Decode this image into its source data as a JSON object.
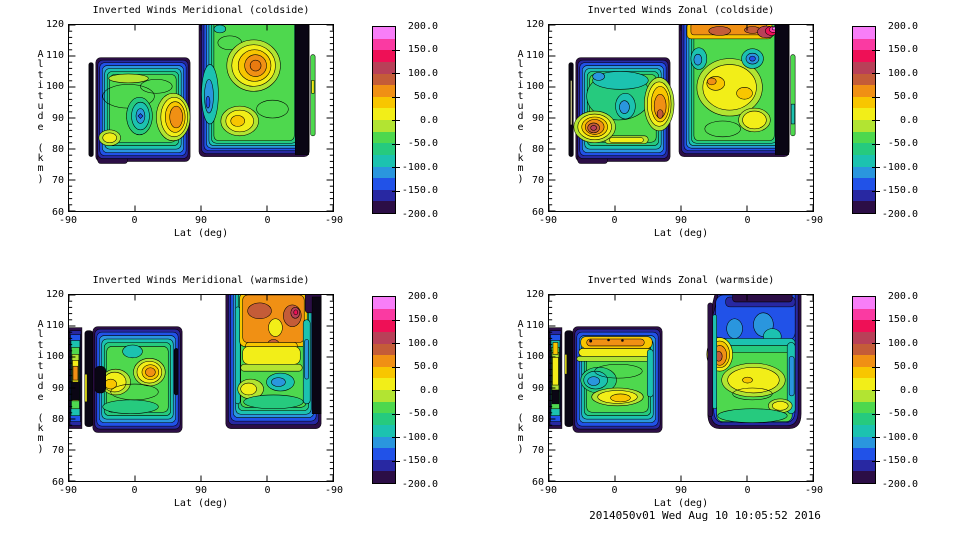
{
  "footer": {
    "text": "2014050v01 Wed Aug 10 10:05:52 2016"
  },
  "axes": {
    "x_label": "Lat (deg)",
    "y_label": "Altitude (km)",
    "x_ticks": [
      "-90",
      "0",
      "90",
      "0",
      "-90"
    ],
    "y_ticks": [
      "120",
      "110",
      "100",
      "90",
      "80",
      "70",
      "60"
    ]
  },
  "colorbar": {
    "labels": [
      "200.0",
      "150.0",
      "100.0",
      "50.0",
      "0.0",
      "-50.0",
      "-100.0",
      "-150.0",
      "-200.0"
    ],
    "min": -200,
    "max": 200,
    "band_step": 25,
    "colors_top_to_bottom": [
      "#f87ef8",
      "#fa3aa2",
      "#ee1056",
      "#b84058",
      "#c45c38",
      "#f09014",
      "#f8c600",
      "#f2ee18",
      "#b2e432",
      "#4ed84e",
      "#26ca7e",
      "#1cc2b0",
      "#2a96de",
      "#2152e8",
      "#2828a2",
      "#2c0e46"
    ]
  },
  "panels": [
    {
      "id": "meridional-coldside",
      "title": "Inverted Winds Meridional (coldside)"
    },
    {
      "id": "zonal-coldside",
      "title": "Inverted Winds Zonal (coldside)"
    },
    {
      "id": "meridional-warmside",
      "title": "Inverted Winds Meridional (warmside)"
    },
    {
      "id": "zonal-warmside",
      "title": "Inverted Winds Zonal (warmside)"
    }
  ],
  "chart_data": [
    {
      "panel": "top-left",
      "type": "heatmap",
      "subtype": "filled-contour",
      "title": "Inverted Winds Meridional (coldside)",
      "xlabel": "Lat (deg)",
      "ylabel": "Altitude (km)",
      "x_tick_labels": [
        -90,
        0,
        90,
        0,
        -90
      ],
      "y_range": [
        60,
        120
      ],
      "y_tick_step": 10,
      "colorbar_range": [
        -200,
        200
      ],
      "colorbar_label_step": 50,
      "contour_interval": 25,
      "features": [
        "thin off-scale (dark, ~-200) vertical sliver near ascending lat -35, alt 77-108 km",
        "left swath lat -55..90, alt 76-110 km: mostly -25..-75 (green/cyan); +50..+75 max near lat 55-75 at 86-99 km; -100 pocket near lat 10-20 at 87-94 km; dark -175..-200 rim",
        "right swath (descending), alt 78-120 km: +50..+100 max near lat 30..0 at 100-112 km; +25..+50 patch at 85-95 km; -75..-100 trough near lat 75 at 85-115 km; off-scale dark band at right edge (lat ~-50)"
      ]
    },
    {
      "panel": "top-right",
      "type": "heatmap",
      "subtype": "filled-contour",
      "title": "Inverted Winds Zonal (coldside)",
      "xlabel": "Lat (deg)",
      "ylabel": "Altitude (km)",
      "x_tick_labels": [
        -90,
        0,
        90,
        0,
        -90
      ],
      "y_range": [
        60,
        120
      ],
      "y_tick_step": 10,
      "colorbar_range": [
        -200,
        200
      ],
      "colorbar_label_step": 50,
      "contour_interval": 25,
      "features": [
        "thin dark sliver near lat -35 with pale yellow inner line, alt 80-102 km",
        "left swath alt 76-110 km: +75..+125 max near lat -30..-10 at 80-92 km; +50..+100 column near lat 60-85 at 85-105 km; -75..-100 pocket near lat 25 at 88-95 km",
        "right swath alt 78-120 km: broad 0..+50 field at 85-100 km; +75..+150 band at 112-120 km with >+150 (pink) patch at top right; -75..-125 pockets at 103-110 km; dark band at right edge"
      ]
    },
    {
      "panel": "bottom-left",
      "type": "heatmap",
      "subtype": "filled-contour",
      "title": "Inverted Winds Meridional (warmside)",
      "xlabel": "Lat (deg)",
      "ylabel": "Altitude (km)",
      "x_tick_labels": [
        -90,
        0,
        90,
        0,
        -90
      ],
      "y_range": [
        60,
        120
      ],
      "y_tick_step": 10,
      "colorbar_range": [
        -200,
        200
      ],
      "colorbar_label_step": 50,
      "contour_interval": 25,
      "features": [
        "narrow banded strip at lat -90 edge (alt 77-110 km) with 0..+50 core; wide black sliver beside it",
        "left swath lat -80..55, alt 76-110 km: 0..+25 band at 85-95 km; +50..+75 core near lat 20-30 at 93-98 km; heavy -100..-175 blue banding at 100-110 km; off-scale dark pocket at left interior 83-96 km",
        "right swath alt 77-120 km: +50..+100 with +75..+125 brown cores at 103-118 km; 0..+25 at 88-98 km; -75..-100 pocket near descending lat -35 at 85-92 km; dark band at right edge"
      ]
    },
    {
      "panel": "bottom-right",
      "type": "heatmap",
      "subtype": "filled-contour",
      "title": "Inverted Winds Zonal (warmside)",
      "xlabel": "Lat (deg)",
      "ylabel": "Altitude (km)",
      "x_tick_labels": [
        -90,
        0,
        90,
        0,
        -90
      ],
      "y_range": [
        60,
        120
      ],
      "y_tick_step": 10,
      "colorbar_range": [
        -200,
        200
      ],
      "colorbar_label_step": 50,
      "contour_interval": 25,
      "features": [
        "narrow banded strip at lat -90 edge (alt 77-110 km); wide black sliver beside it",
        "left swath alt 76-110 km: +25..+75 band at 99-105 km with small off-scale specks; -75..-100 pocket near lat -25..0 at 84-96 km; 0..+25 band at 83-88 km",
        "right swath alt 77-120 km: -100..-175 blue region at 103-120 km; +50..+100 spot near lat 60-70 at 93-104 km with brick core; broad 0..+25 area at 83-97 km; -50..-100 cyan column near descending lat -60..-80; small +25 spot at bottom right"
      ]
    }
  ]
}
